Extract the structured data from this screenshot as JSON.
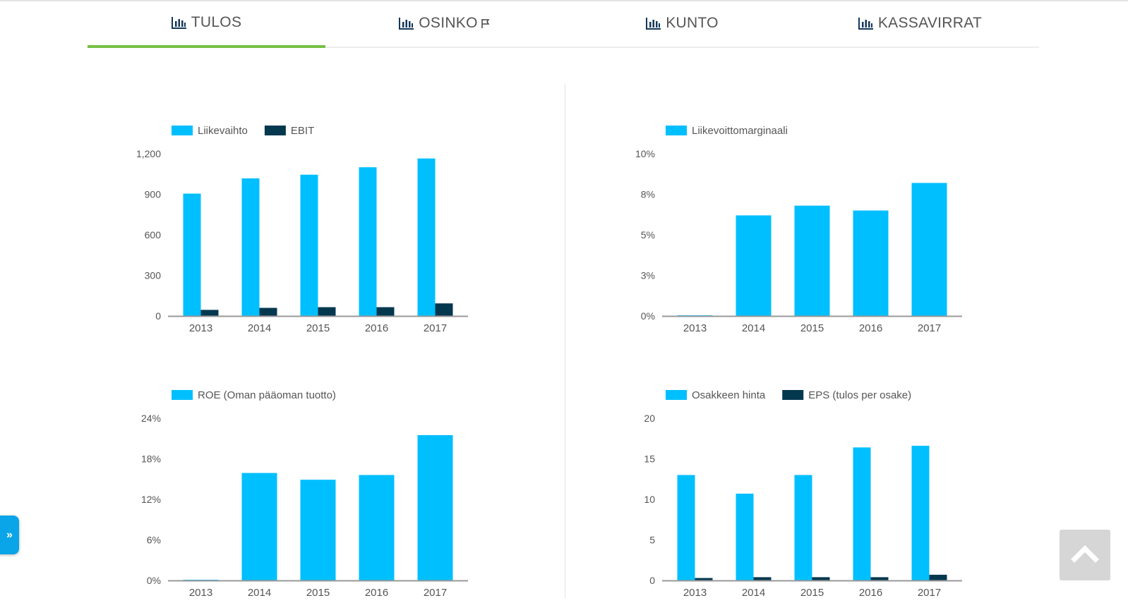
{
  "tabs": [
    {
      "label": "TULOS",
      "active": true,
      "flag": false
    },
    {
      "label": "OSINKO",
      "active": false,
      "flag": true
    },
    {
      "label": "KUNTO",
      "active": false,
      "flag": false
    },
    {
      "label": "KASSAVIRRAT",
      "active": false,
      "flag": false
    }
  ],
  "colors": {
    "primary": "#00bfff",
    "secondary": "#04384f",
    "accent": "#76c043",
    "axis": "#999999",
    "text": "#555555"
  },
  "icons": {
    "tab": "bar-chart-icon",
    "flag": "flag-icon",
    "side_toggle": "double-chevron-right-icon",
    "scroll_top": "chevron-up-icon"
  },
  "chart_data": [
    {
      "id": "revenue",
      "type": "bar",
      "categories": [
        "2013",
        "2014",
        "2015",
        "2016",
        "2017"
      ],
      "series": [
        {
          "name": "Liikevaihto",
          "values": [
            905,
            1018,
            1045,
            1100,
            1165
          ]
        },
        {
          "name": "EBIT",
          "values": [
            45,
            60,
            65,
            65,
            93
          ]
        }
      ],
      "yticks": [
        "0",
        "300",
        "600",
        "900",
        "1,200"
      ],
      "ylim": [
        0,
        1200
      ],
      "legend": "top-left"
    },
    {
      "id": "margin",
      "type": "bar",
      "categories": [
        "2013",
        "2014",
        "2015",
        "2016",
        "2017"
      ],
      "series": [
        {
          "name": "Liikevoittomarginaali",
          "values": [
            0,
            6.2,
            6.8,
            6.5,
            8.2
          ]
        }
      ],
      "yticks": [
        "0%",
        "3%",
        "5%",
        "8%",
        "10%"
      ],
      "ylim": [
        0,
        10
      ],
      "legend": "top-left"
    },
    {
      "id": "roe",
      "type": "bar",
      "categories": [
        "2013",
        "2014",
        "2015",
        "2016",
        "2017"
      ],
      "series": [
        {
          "name": "ROE (Oman pääoman tuotto)",
          "values": [
            0,
            15.9,
            14.9,
            15.6,
            21.5
          ]
        }
      ],
      "yticks": [
        "0%",
        "6%",
        "12%",
        "18%",
        "24%"
      ],
      "ylim": [
        0,
        24
      ],
      "legend": "top-left"
    },
    {
      "id": "share",
      "type": "bar",
      "categories": [
        "2013",
        "2014",
        "2015",
        "2016",
        "2017"
      ],
      "series": [
        {
          "name": "Osakkeen hinta",
          "values": [
            13.0,
            10.7,
            13.0,
            16.4,
            16.6
          ]
        },
        {
          "name": "EPS (tulos per osake)",
          "values": [
            0.3,
            0.4,
            0.4,
            0.4,
            0.7
          ]
        }
      ],
      "yticks": [
        "0",
        "5",
        "10",
        "15",
        "20"
      ],
      "ylim": [
        0,
        20
      ],
      "legend": "top-left"
    }
  ]
}
